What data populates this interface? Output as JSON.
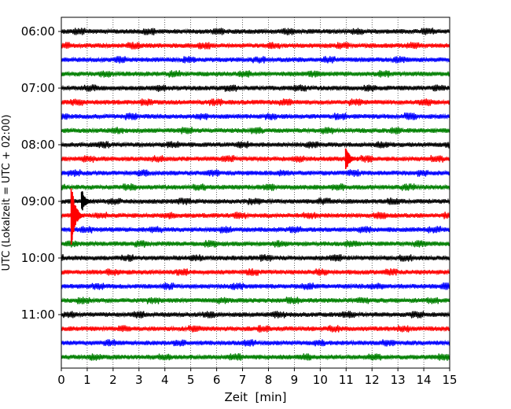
{
  "chart_data": {
    "type": "line",
    "title": "",
    "xlabel": "Zeit  [min]",
    "ylabel": "UTC (Lokalzeit = UTC + 02:00)",
    "xlim": [
      0,
      15
    ],
    "x_ticks": [
      "0",
      "1",
      "2",
      "3",
      "4",
      "5",
      "6",
      "7",
      "8",
      "9",
      "10",
      "11",
      "12",
      "13",
      "14",
      "15"
    ],
    "y_ticks": [
      "06:00",
      "07:00",
      "08:00",
      "09:00",
      "10:00",
      "11:00"
    ],
    "row_interval_min": 15,
    "first_row_time": "06:00",
    "row_count": 24,
    "row_colors": [
      "#000000",
      "#ff0000",
      "#0000ff",
      "#008000"
    ],
    "grid": "vertical dotted at each minute",
    "events": [
      {
        "row_time": "08:15",
        "minute": 11.1,
        "relative_amplitude": 1.6
      },
      {
        "row_time": "09:00",
        "minute": 0.9,
        "relative_amplitude": 1.5
      },
      {
        "row_time": "09:15",
        "minute": 0.5,
        "relative_amplitude": 4.0
      }
    ]
  }
}
